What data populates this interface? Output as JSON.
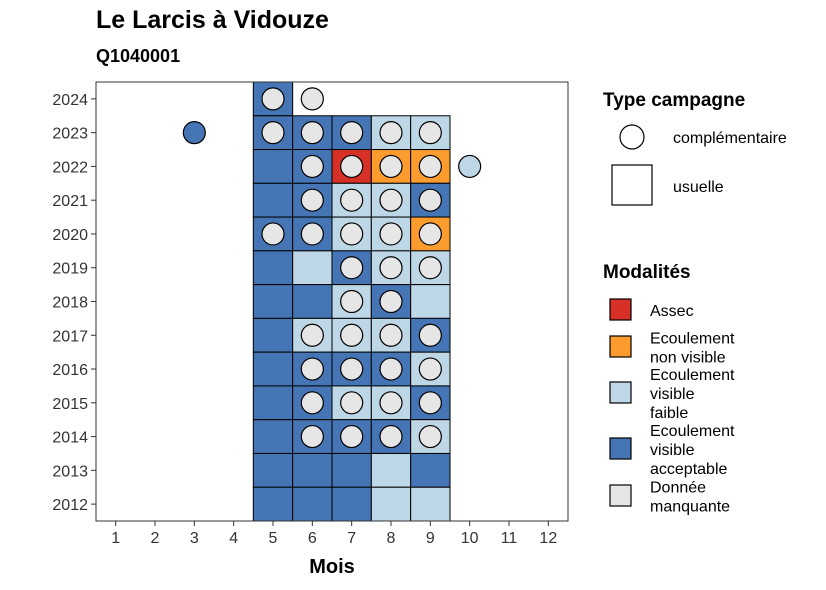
{
  "title": "Le Larcis à Vidouze",
  "subtitle": "Q1040001",
  "chart_data": {
    "type": "heatmap",
    "title": "Le Larcis à Vidouze",
    "subtitle": "Q1040001",
    "xlabel": "Mois",
    "ylabel": "",
    "x_ticks": [
      "1",
      "2",
      "3",
      "4",
      "5",
      "6",
      "7",
      "8",
      "9",
      "10",
      "11",
      "12"
    ],
    "y_ticks": [
      "2012",
      "2013",
      "2014",
      "2015",
      "2016",
      "2017",
      "2018",
      "2019",
      "2020",
      "2021",
      "2022",
      "2023",
      "2024"
    ],
    "xlim": [
      0.5,
      12.5
    ],
    "ylim": [
      2011.5,
      2024.5
    ],
    "grid": false,
    "legend_placement": "right",
    "categories": [
      {
        "key": "assec",
        "label": "Assec",
        "color": "#d73027"
      },
      {
        "key": "nonvisible",
        "label": "Ecoulement non visible",
        "color": "#fc9b2e"
      },
      {
        "key": "faible",
        "label": "Ecoulement visible faible",
        "color": "#bdd7e7"
      },
      {
        "key": "acceptable",
        "label": "Ecoulement visible acceptable",
        "color": "#4575b4"
      },
      {
        "key": "manquante",
        "label": "Donnée manquante",
        "color": "#e6e6e6"
      }
    ],
    "campaign_types": [
      {
        "key": "complementaire",
        "label": "complémentaire",
        "shape": "circle"
      },
      {
        "key": "usuelle",
        "label": "usuelle",
        "shape": "square"
      }
    ],
    "usuelle": [
      {
        "year": 2024,
        "month": 5,
        "value": "acceptable"
      },
      {
        "year": 2023,
        "month": 5,
        "value": "acceptable"
      },
      {
        "year": 2023,
        "month": 6,
        "value": "acceptable"
      },
      {
        "year": 2023,
        "month": 7,
        "value": "acceptable"
      },
      {
        "year": 2023,
        "month": 8,
        "value": "faible"
      },
      {
        "year": 2023,
        "month": 9,
        "value": "faible"
      },
      {
        "year": 2022,
        "month": 5,
        "value": "acceptable"
      },
      {
        "year": 2022,
        "month": 6,
        "value": "acceptable"
      },
      {
        "year": 2022,
        "month": 7,
        "value": "assec"
      },
      {
        "year": 2022,
        "month": 8,
        "value": "nonvisible"
      },
      {
        "year": 2022,
        "month": 9,
        "value": "nonvisible"
      },
      {
        "year": 2021,
        "month": 5,
        "value": "acceptable"
      },
      {
        "year": 2021,
        "month": 6,
        "value": "acceptable"
      },
      {
        "year": 2021,
        "month": 7,
        "value": "faible"
      },
      {
        "year": 2021,
        "month": 8,
        "value": "faible"
      },
      {
        "year": 2021,
        "month": 9,
        "value": "acceptable"
      },
      {
        "year": 2020,
        "month": 5,
        "value": "acceptable"
      },
      {
        "year": 2020,
        "month": 6,
        "value": "acceptable"
      },
      {
        "year": 2020,
        "month": 7,
        "value": "faible"
      },
      {
        "year": 2020,
        "month": 8,
        "value": "faible"
      },
      {
        "year": 2020,
        "month": 9,
        "value": "nonvisible"
      },
      {
        "year": 2019,
        "month": 5,
        "value": "acceptable"
      },
      {
        "year": 2019,
        "month": 6,
        "value": "faible"
      },
      {
        "year": 2019,
        "month": 7,
        "value": "acceptable"
      },
      {
        "year": 2019,
        "month": 8,
        "value": "faible"
      },
      {
        "year": 2019,
        "month": 9,
        "value": "faible"
      },
      {
        "year": 2018,
        "month": 5,
        "value": "acceptable"
      },
      {
        "year": 2018,
        "month": 6,
        "value": "acceptable"
      },
      {
        "year": 2018,
        "month": 7,
        "value": "faible"
      },
      {
        "year": 2018,
        "month": 8,
        "value": "acceptable"
      },
      {
        "year": 2018,
        "month": 9,
        "value": "faible"
      },
      {
        "year": 2017,
        "month": 5,
        "value": "acceptable"
      },
      {
        "year": 2017,
        "month": 6,
        "value": "faible"
      },
      {
        "year": 2017,
        "month": 7,
        "value": "faible"
      },
      {
        "year": 2017,
        "month": 8,
        "value": "faible"
      },
      {
        "year": 2017,
        "month": 9,
        "value": "acceptable"
      },
      {
        "year": 2016,
        "month": 5,
        "value": "acceptable"
      },
      {
        "year": 2016,
        "month": 6,
        "value": "acceptable"
      },
      {
        "year": 2016,
        "month": 7,
        "value": "acceptable"
      },
      {
        "year": 2016,
        "month": 8,
        "value": "acceptable"
      },
      {
        "year": 2016,
        "month": 9,
        "value": "faible"
      },
      {
        "year": 2015,
        "month": 5,
        "value": "acceptable"
      },
      {
        "year": 2015,
        "month": 6,
        "value": "acceptable"
      },
      {
        "year": 2015,
        "month": 7,
        "value": "faible"
      },
      {
        "year": 2015,
        "month": 8,
        "value": "faible"
      },
      {
        "year": 2015,
        "month": 9,
        "value": "acceptable"
      },
      {
        "year": 2014,
        "month": 5,
        "value": "acceptable"
      },
      {
        "year": 2014,
        "month": 6,
        "value": "acceptable"
      },
      {
        "year": 2014,
        "month": 7,
        "value": "acceptable"
      },
      {
        "year": 2014,
        "month": 8,
        "value": "acceptable"
      },
      {
        "year": 2014,
        "month": 9,
        "value": "faible"
      },
      {
        "year": 2013,
        "month": 5,
        "value": "acceptable"
      },
      {
        "year": 2013,
        "month": 6,
        "value": "acceptable"
      },
      {
        "year": 2013,
        "month": 7,
        "value": "acceptable"
      },
      {
        "year": 2013,
        "month": 8,
        "value": "faible"
      },
      {
        "year": 2013,
        "month": 9,
        "value": "acceptable"
      },
      {
        "year": 2012,
        "month": 5,
        "value": "acceptable"
      },
      {
        "year": 2012,
        "month": 6,
        "value": "acceptable"
      },
      {
        "year": 2012,
        "month": 7,
        "value": "acceptable"
      },
      {
        "year": 2012,
        "month": 8,
        "value": "faible"
      },
      {
        "year": 2012,
        "month": 9,
        "value": "faible"
      }
    ],
    "complementaire": [
      {
        "year": 2024,
        "month": 5,
        "value": "manquante"
      },
      {
        "year": 2024,
        "month": 6,
        "value": "manquante"
      },
      {
        "year": 2023,
        "month": 3,
        "value": "acceptable"
      },
      {
        "year": 2023,
        "month": 5,
        "value": "manquante"
      },
      {
        "year": 2023,
        "month": 6,
        "value": "manquante"
      },
      {
        "year": 2023,
        "month": 7,
        "value": "manquante"
      },
      {
        "year": 2023,
        "month": 8,
        "value": "manquante"
      },
      {
        "year": 2023,
        "month": 9,
        "value": "manquante"
      },
      {
        "year": 2022,
        "month": 6,
        "value": "manquante"
      },
      {
        "year": 2022,
        "month": 7,
        "value": "manquante"
      },
      {
        "year": 2022,
        "month": 8,
        "value": "manquante"
      },
      {
        "year": 2022,
        "month": 9,
        "value": "manquante"
      },
      {
        "year": 2022,
        "month": 10,
        "value": "faible"
      },
      {
        "year": 2021,
        "month": 6,
        "value": "manquante"
      },
      {
        "year": 2021,
        "month": 7,
        "value": "manquante"
      },
      {
        "year": 2021,
        "month": 8,
        "value": "manquante"
      },
      {
        "year": 2021,
        "month": 9,
        "value": "manquante"
      },
      {
        "year": 2020,
        "month": 5,
        "value": "manquante"
      },
      {
        "year": 2020,
        "month": 6,
        "value": "manquante"
      },
      {
        "year": 2020,
        "month": 7,
        "value": "manquante"
      },
      {
        "year": 2020,
        "month": 8,
        "value": "manquante"
      },
      {
        "year": 2020,
        "month": 9,
        "value": "manquante"
      },
      {
        "year": 2019,
        "month": 7,
        "value": "manquante"
      },
      {
        "year": 2019,
        "month": 8,
        "value": "manquante"
      },
      {
        "year": 2019,
        "month": 9,
        "value": "manquante"
      },
      {
        "year": 2018,
        "month": 7,
        "value": "manquante"
      },
      {
        "year": 2018,
        "month": 8,
        "value": "manquante"
      },
      {
        "year": 2017,
        "month": 6,
        "value": "manquante"
      },
      {
        "year": 2017,
        "month": 7,
        "value": "manquante"
      },
      {
        "year": 2017,
        "month": 8,
        "value": "manquante"
      },
      {
        "year": 2017,
        "month": 9,
        "value": "manquante"
      },
      {
        "year": 2016,
        "month": 6,
        "value": "manquante"
      },
      {
        "year": 2016,
        "month": 7,
        "value": "manquante"
      },
      {
        "year": 2016,
        "month": 8,
        "value": "manquante"
      },
      {
        "year": 2016,
        "month": 9,
        "value": "manquante"
      },
      {
        "year": 2015,
        "month": 6,
        "value": "manquante"
      },
      {
        "year": 2015,
        "month": 7,
        "value": "manquante"
      },
      {
        "year": 2015,
        "month": 8,
        "value": "manquante"
      },
      {
        "year": 2015,
        "month": 9,
        "value": "manquante"
      },
      {
        "year": 2014,
        "month": 6,
        "value": "manquante"
      },
      {
        "year": 2014,
        "month": 7,
        "value": "manquante"
      },
      {
        "year": 2014,
        "month": 8,
        "value": "manquante"
      },
      {
        "year": 2014,
        "month": 9,
        "value": "manquante"
      }
    ]
  },
  "legend": {
    "campaign_title": "Type campagne",
    "complementaire_label": "complémentaire",
    "usuelle_label": "usuelle",
    "modalites_title": "Modalités",
    "items": [
      {
        "key": "assec",
        "lines": [
          "Assec"
        ]
      },
      {
        "key": "nonvisible",
        "lines": [
          "Ecoulement",
          "non visible"
        ]
      },
      {
        "key": "faible",
        "lines": [
          "Ecoulement",
          "visible",
          "faible"
        ]
      },
      {
        "key": "acceptable",
        "lines": [
          "Ecoulement",
          "visible",
          "acceptable"
        ]
      },
      {
        "key": "manquante",
        "lines": [
          "Donnée",
          "manquante"
        ]
      }
    ]
  }
}
